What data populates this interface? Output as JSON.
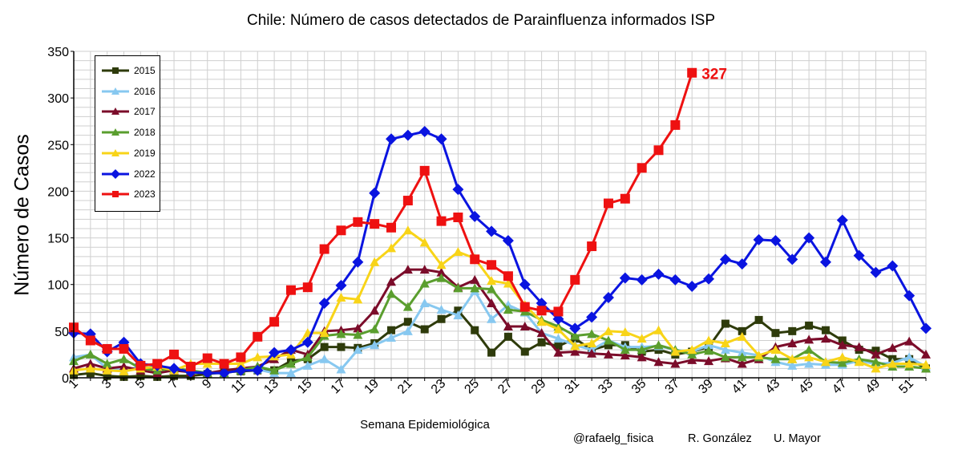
{
  "chart_data": {
    "type": "line",
    "title": "Chile: Número de casos detectados de Parainfluenza informados ISP",
    "xlabel": "Semana Epidemiológica",
    "ylabel": "Número de Casos",
    "xlim": [
      1,
      52
    ],
    "ylim": [
      0,
      350
    ],
    "yticks": [
      0,
      50,
      100,
      150,
      200,
      250,
      300,
      350
    ],
    "xticks": [
      1,
      3,
      5,
      7,
      9,
      11,
      13,
      15,
      17,
      19,
      21,
      23,
      25,
      27,
      29,
      31,
      33,
      35,
      37,
      39,
      41,
      43,
      45,
      47,
      49,
      51
    ],
    "grid": true,
    "legend_position": "top-left",
    "annotation": {
      "text": "327",
      "x": 38,
      "y": 327,
      "color": "#ee1111"
    },
    "series": [
      {
        "name": "2015",
        "color": "#2e3b0b",
        "marker": "square",
        "values": [
          3,
          5,
          2,
          1,
          2,
          1,
          2,
          2,
          4,
          6,
          7,
          8,
          8,
          18,
          20,
          33,
          33,
          32,
          37,
          51,
          60,
          52,
          63,
          72,
          51,
          27,
          44,
          28,
          38,
          34,
          42,
          30,
          35,
          35,
          28,
          30,
          25,
          28,
          33,
          58,
          50,
          62,
          48,
          50,
          56,
          51,
          40,
          30,
          29,
          20,
          20,
          10
        ]
      },
      {
        "name": "2016",
        "color": "#87c8f0",
        "marker": "triangle",
        "values": [
          22,
          25,
          10,
          8,
          12,
          10,
          8,
          8,
          5,
          5,
          8,
          9,
          5,
          5,
          13,
          20,
          9,
          30,
          35,
          43,
          50,
          80,
          73,
          67,
          93,
          63,
          78,
          70,
          48,
          42,
          35,
          30,
          40,
          33,
          33,
          34,
          30,
          28,
          35,
          30,
          27,
          24,
          17,
          13,
          15,
          14,
          14,
          18,
          15,
          16,
          22,
          12
        ]
      },
      {
        "name": "2017",
        "color": "#7b0c2a",
        "marker": "triangle",
        "values": [
          10,
          15,
          10,
          12,
          8,
          5,
          8,
          6,
          5,
          8,
          10,
          12,
          20,
          30,
          25,
          50,
          51,
          53,
          72,
          103,
          116,
          116,
          113,
          97,
          105,
          80,
          55,
          55,
          48,
          27,
          28,
          26,
          25,
          24,
          22,
          17,
          15,
          19,
          18,
          21,
          15,
          20,
          33,
          37,
          41,
          42,
          35,
          33,
          25,
          32,
          39,
          25
        ]
      },
      {
        "name": "2018",
        "color": "#5a9e2e",
        "marker": "triangle",
        "values": [
          18,
          25,
          15,
          20,
          10,
          8,
          10,
          8,
          5,
          5,
          8,
          12,
          8,
          15,
          22,
          45,
          47,
          46,
          52,
          90,
          76,
          101,
          107,
          96,
          96,
          95,
          73,
          71,
          62,
          55,
          45,
          47,
          40,
          30,
          30,
          35,
          30,
          25,
          29,
          22,
          22,
          22,
          20,
          20,
          30,
          17,
          16,
          20,
          17,
          12,
          12,
          10
        ]
      },
      {
        "name": "2019",
        "color": "#f8d418",
        "marker": "triangle",
        "values": [
          8,
          10,
          8,
          7,
          10,
          12,
          8,
          15,
          15,
          15,
          15,
          22,
          23,
          25,
          48,
          48,
          86,
          84,
          124,
          139,
          158,
          145,
          121,
          135,
          128,
          104,
          101,
          78,
          60,
          52,
          34,
          37,
          50,
          49,
          42,
          51,
          28,
          30,
          40,
          37,
          44,
          24,
          30,
          20,
          22,
          17,
          22,
          17,
          10,
          15,
          15,
          14
        ]
      },
      {
        "name": "2022",
        "color": "#0a14e0",
        "marker": "diamond",
        "values": [
          48,
          47,
          28,
          38,
          15,
          13,
          10,
          6,
          5,
          5,
          8,
          8,
          27,
          30,
          38,
          80,
          99,
          124,
          198,
          256,
          260,
          264,
          256,
          202,
          173,
          157,
          147,
          100,
          80,
          63,
          53,
          65,
          86,
          107,
          105,
          111,
          105,
          98,
          106,
          127,
          122,
          148,
          147,
          127,
          150,
          124,
          169,
          131,
          113,
          120,
          88,
          53
        ]
      },
      {
        "name": "2023",
        "color": "#ee1111",
        "marker": "square",
        "values": [
          54,
          40,
          31,
          31,
          13,
          15,
          25,
          12,
          21,
          15,
          22,
          44,
          60,
          94,
          97,
          138,
          158,
          167,
          165,
          161,
          190,
          222,
          168,
          172,
          127,
          121,
          109,
          76,
          72,
          71,
          105,
          141,
          187,
          192,
          225,
          244,
          271,
          327
        ]
      }
    ]
  },
  "credits": {
    "author": "@rafaelg_fisica",
    "name": "R. González",
    "affiliation": "U. Mayor"
  }
}
